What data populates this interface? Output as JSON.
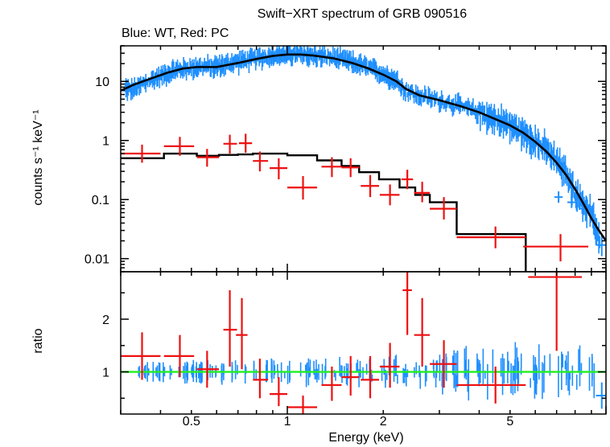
{
  "chart_data": [
    {
      "type": "scatter",
      "title": "Swift−XRT spectrum of GRB 090516",
      "subtitle": "Blue: WT, Red: PC",
      "xlabel": "Energy (keV)",
      "ylabel": "counts s⁻¹ keV⁻¹",
      "xscale": "log",
      "yscale": "log",
      "xlim": [
        0.3,
        10
      ],
      "ylim": [
        0.006,
        40
      ],
      "xticks": [
        {
          "v": 0.5,
          "label": "0.5"
        },
        {
          "v": 1,
          "label": "1"
        },
        {
          "v": 2,
          "label": "2"
        },
        {
          "v": 5,
          "label": "5"
        }
      ],
      "yticks": [
        {
          "v": 10,
          "label": "10"
        },
        {
          "v": 1,
          "label": "1"
        },
        {
          "v": 0.1,
          "label": "0.1"
        },
        {
          "v": 0.01,
          "label": "0.01"
        }
      ],
      "colors": {
        "wt": "#1e8fff",
        "pc": "#ee1111",
        "model": "#000000"
      },
      "wt_points": [
        [
          0.31,
          7.5
        ],
        [
          0.33,
          7.2
        ],
        [
          0.35,
          9
        ],
        [
          0.38,
          11
        ],
        [
          0.41,
          13
        ],
        [
          0.44,
          15
        ],
        [
          0.47,
          16.5
        ],
        [
          0.5,
          17
        ],
        [
          0.54,
          18
        ],
        [
          0.58,
          17.5
        ],
        [
          0.62,
          18.5
        ],
        [
          0.66,
          20
        ],
        [
          0.7,
          21.5
        ],
        [
          0.75,
          23
        ],
        [
          0.8,
          24.5
        ],
        [
          0.85,
          26
        ],
        [
          0.9,
          27.5
        ],
        [
          0.95,
          28
        ],
        [
          1.0,
          29
        ],
        [
          1.05,
          28.5
        ],
        [
          1.1,
          29
        ],
        [
          1.15,
          28
        ],
        [
          1.2,
          27.5
        ],
        [
          1.3,
          26.5
        ],
        [
          1.4,
          25
        ],
        [
          1.5,
          23
        ],
        [
          1.6,
          21
        ],
        [
          1.7,
          19
        ],
        [
          1.8,
          17
        ],
        [
          1.9,
          15
        ],
        [
          2.0,
          13.5
        ],
        [
          2.1,
          12
        ],
        [
          2.2,
          10.5
        ],
        [
          2.3,
          7.8
        ],
        [
          2.5,
          6
        ],
        [
          2.7,
          5.4
        ],
        [
          3.0,
          4.8
        ],
        [
          3.3,
          4.2
        ],
        [
          3.6,
          3.6
        ],
        [
          4.0,
          3.0
        ],
        [
          4.4,
          2.4
        ],
        [
          4.8,
          2.0
        ],
        [
          5.2,
          1.6
        ],
        [
          5.6,
          1.25
        ],
        [
          6.0,
          0.95
        ],
        [
          6.5,
          0.7
        ],
        [
          7.0,
          0.45
        ],
        [
          7.5,
          0.27
        ],
        [
          8.0,
          0.13
        ],
        [
          8.5,
          0.08
        ],
        [
          9.0,
          0.06
        ],
        [
          9.6,
          0.016
        ]
      ],
      "wt_spot": [
        [
          0.33,
          7.0
        ],
        [
          7.1,
          0.11
        ],
        [
          7.8,
          0.09
        ],
        [
          8.5,
          0.07
        ]
      ],
      "pc_points": [
        {
          "x": 0.35,
          "dxl": 0.05,
          "dxh": 0.05,
          "y": 0.6,
          "yl": 0.42,
          "yh": 0.85
        },
        {
          "x": 0.46,
          "dxl": 0.05,
          "dxh": 0.05,
          "y": 0.8,
          "yl": 0.55,
          "yh": 1.15
        },
        {
          "x": 0.56,
          "dxl": 0.04,
          "dxh": 0.05,
          "y": 0.52,
          "yl": 0.36,
          "yh": 0.72
        },
        {
          "x": 0.66,
          "dxl": 0.03,
          "dxh": 0.035,
          "y": 0.88,
          "yl": 0.6,
          "yh": 1.25
        },
        {
          "x": 0.74,
          "dxl": 0.035,
          "dxh": 0.035,
          "y": 0.9,
          "yl": 0.62,
          "yh": 1.3
        },
        {
          "x": 0.82,
          "dxl": 0.04,
          "dxh": 0.05,
          "y": 0.45,
          "yl": 0.3,
          "yh": 0.65
        },
        {
          "x": 0.94,
          "dxl": 0.06,
          "dxh": 0.06,
          "y": 0.34,
          "yl": 0.22,
          "yh": 0.5
        },
        {
          "x": 1.12,
          "dxl": 0.12,
          "dxh": 0.12,
          "y": 0.16,
          "yl": 0.1,
          "yh": 0.25
        },
        {
          "x": 1.38,
          "dxl": 0.1,
          "dxh": 0.1,
          "y": 0.36,
          "yl": 0.24,
          "yh": 0.52
        },
        {
          "x": 1.58,
          "dxl": 0.1,
          "dxh": 0.1,
          "y": 0.35,
          "yl": 0.24,
          "yh": 0.5
        },
        {
          "x": 1.82,
          "dxl": 0.12,
          "dxh": 0.12,
          "y": 0.17,
          "yl": 0.11,
          "yh": 0.26
        },
        {
          "x": 2.1,
          "dxl": 0.15,
          "dxh": 0.15,
          "y": 0.12,
          "yl": 0.08,
          "yh": 0.18
        },
        {
          "x": 2.38,
          "dxl": 0.1,
          "dxh": 0.1,
          "y": 0.22,
          "yl": 0.15,
          "yh": 0.32
        },
        {
          "x": 2.65,
          "dxl": 0.15,
          "dxh": 0.15,
          "y": 0.13,
          "yl": 0.09,
          "yh": 0.2
        },
        {
          "x": 3.1,
          "dxl": 0.3,
          "dxh": 0.3,
          "y": 0.07,
          "yl": 0.046,
          "yh": 0.11
        },
        {
          "x": 4.5,
          "dxl": 1.1,
          "dxh": 1.1,
          "y": 0.023,
          "yl": 0.015,
          "yh": 0.035
        },
        {
          "x": 7.2,
          "dxl": 1.7,
          "dxh": 1.6,
          "y": 0.016,
          "yl": 0.009,
          "yh": 0.026
        }
      ],
      "wt_last": {
        "x": 9.7,
        "dxl": 0.4,
        "dxh": 0.3,
        "y": 0.017,
        "yl": 0.011,
        "yh": 0.026
      },
      "wt_model": [
        [
          0.3,
          7
        ],
        [
          0.33,
          8.8
        ],
        [
          0.37,
          11
        ],
        [
          0.42,
          14
        ],
        [
          0.47,
          16.5
        ],
        [
          0.52,
          17.5
        ],
        [
          0.6,
          17.5
        ],
        [
          0.7,
          20.5
        ],
        [
          0.8,
          24
        ],
        [
          0.9,
          27
        ],
        [
          1.0,
          28.5
        ],
        [
          1.1,
          28.5
        ],
        [
          1.2,
          27.5
        ],
        [
          1.4,
          24.5
        ],
        [
          1.6,
          20.5
        ],
        [
          1.8,
          16.5
        ],
        [
          2.0,
          13
        ],
        [
          2.2,
          10
        ],
        [
          2.35,
          7.5
        ],
        [
          2.6,
          5.8
        ],
        [
          3.0,
          4.8
        ],
        [
          3.5,
          3.8
        ],
        [
          4.0,
          3.0
        ],
        [
          4.5,
          2.3
        ],
        [
          5.0,
          1.8
        ],
        [
          5.5,
          1.35
        ],
        [
          6.0,
          0.95
        ],
        [
          6.5,
          0.65
        ],
        [
          7.0,
          0.42
        ],
        [
          7.5,
          0.26
        ],
        [
          8.0,
          0.15
        ],
        [
          8.5,
          0.085
        ],
        [
          9.0,
          0.048
        ],
        [
          9.5,
          0.03
        ],
        [
          10,
          0.02
        ]
      ],
      "pc_model_step": [
        [
          0.3,
          0.5
        ],
        [
          0.41,
          0.6
        ],
        [
          0.52,
          0.55
        ],
        [
          0.61,
          0.57
        ],
        [
          0.7,
          0.58
        ],
        [
          0.78,
          0.6
        ],
        [
          0.86,
          0.6
        ],
        [
          1.0,
          0.56
        ],
        [
          1.24,
          0.46
        ],
        [
          1.48,
          0.37
        ],
        [
          1.68,
          0.29
        ],
        [
          1.94,
          0.22
        ],
        [
          2.25,
          0.16
        ],
        [
          2.52,
          0.12
        ],
        [
          2.8,
          0.09
        ],
        [
          3.4,
          0.026
        ],
        [
          5.6,
          0.004
        ]
      ]
    },
    {
      "type": "scatter",
      "ylabel": "ratio",
      "xlabel": "Energy (keV)",
      "xscale": "log",
      "ylim": [
        0.2,
        2.9
      ],
      "yticks": [
        {
          "v": 1,
          "label": "1"
        },
        {
          "v": 2,
          "label": "2"
        }
      ],
      "reference_line": 1.0,
      "reference_color": "#22ee22",
      "pc_points": [
        {
          "x": 0.35,
          "dxl": 0.05,
          "dxh": 0.05,
          "y": 1.3,
          "yl": 0.85,
          "yh": 1.75
        },
        {
          "x": 0.46,
          "dxl": 0.05,
          "dxh": 0.05,
          "y": 1.3,
          "yl": 0.9,
          "yh": 1.7
        },
        {
          "x": 0.56,
          "dxl": 0.04,
          "dxh": 0.05,
          "y": 1.05,
          "yl": 0.7,
          "yh": 1.4
        },
        {
          "x": 0.66,
          "dxl": 0.03,
          "dxh": 0.035,
          "y": 1.8,
          "yl": 1.1,
          "yh": 2.55
        },
        {
          "x": 0.72,
          "dxl": 0.03,
          "dxh": 0.03,
          "y": 1.7,
          "yl": 1.05,
          "yh": 2.4
        },
        {
          "x": 0.82,
          "dxl": 0.04,
          "dxh": 0.05,
          "y": 0.85,
          "yl": 0.5,
          "yh": 1.25
        },
        {
          "x": 0.94,
          "dxl": 0.06,
          "dxh": 0.06,
          "y": 0.58,
          "yl": 0.35,
          "yh": 0.9
        },
        {
          "x": 1.12,
          "dxl": 0.12,
          "dxh": 0.12,
          "y": 0.33,
          "yl": 0.2,
          "yh": 0.55
        },
        {
          "x": 1.38,
          "dxl": 0.1,
          "dxh": 0.1,
          "y": 0.75,
          "yl": 0.45,
          "yh": 1.1
        },
        {
          "x": 1.58,
          "dxl": 0.1,
          "dxh": 0.1,
          "y": 0.9,
          "yl": 0.55,
          "yh": 1.3
        },
        {
          "x": 1.82,
          "dxl": 0.12,
          "dxh": 0.12,
          "y": 0.85,
          "yl": 0.5,
          "yh": 1.3
        },
        {
          "x": 2.1,
          "dxl": 0.15,
          "dxh": 0.15,
          "y": 1.1,
          "yl": 0.7,
          "yh": 1.55
        },
        {
          "x": 2.38,
          "dxl": 0.08,
          "dxh": 0.08,
          "y": 2.55,
          "yl": 1.7,
          "yh": 3.0
        },
        {
          "x": 2.65,
          "dxl": 0.15,
          "dxh": 0.15,
          "y": 1.7,
          "yl": 1.1,
          "yh": 2.4
        },
        {
          "x": 3.1,
          "dxl": 0.3,
          "dxh": 0.3,
          "y": 1.15,
          "yl": 0.7,
          "yh": 1.6
        },
        {
          "x": 4.5,
          "dxl": 1.1,
          "dxh": 1.1,
          "y": 0.75,
          "yl": 0.4,
          "yh": 1.1
        },
        {
          "x": 7.0,
          "dxl": 1.3,
          "dxh": 1.4,
          "y": 2.8,
          "yl": 1.4,
          "yh": 3.0
        }
      ],
      "wt_last": {
        "x": 9.7,
        "dxl": 0.4,
        "dxh": 0.3,
        "y": 0.55,
        "yl": 0.3,
        "yh": 0.8
      }
    }
  ]
}
